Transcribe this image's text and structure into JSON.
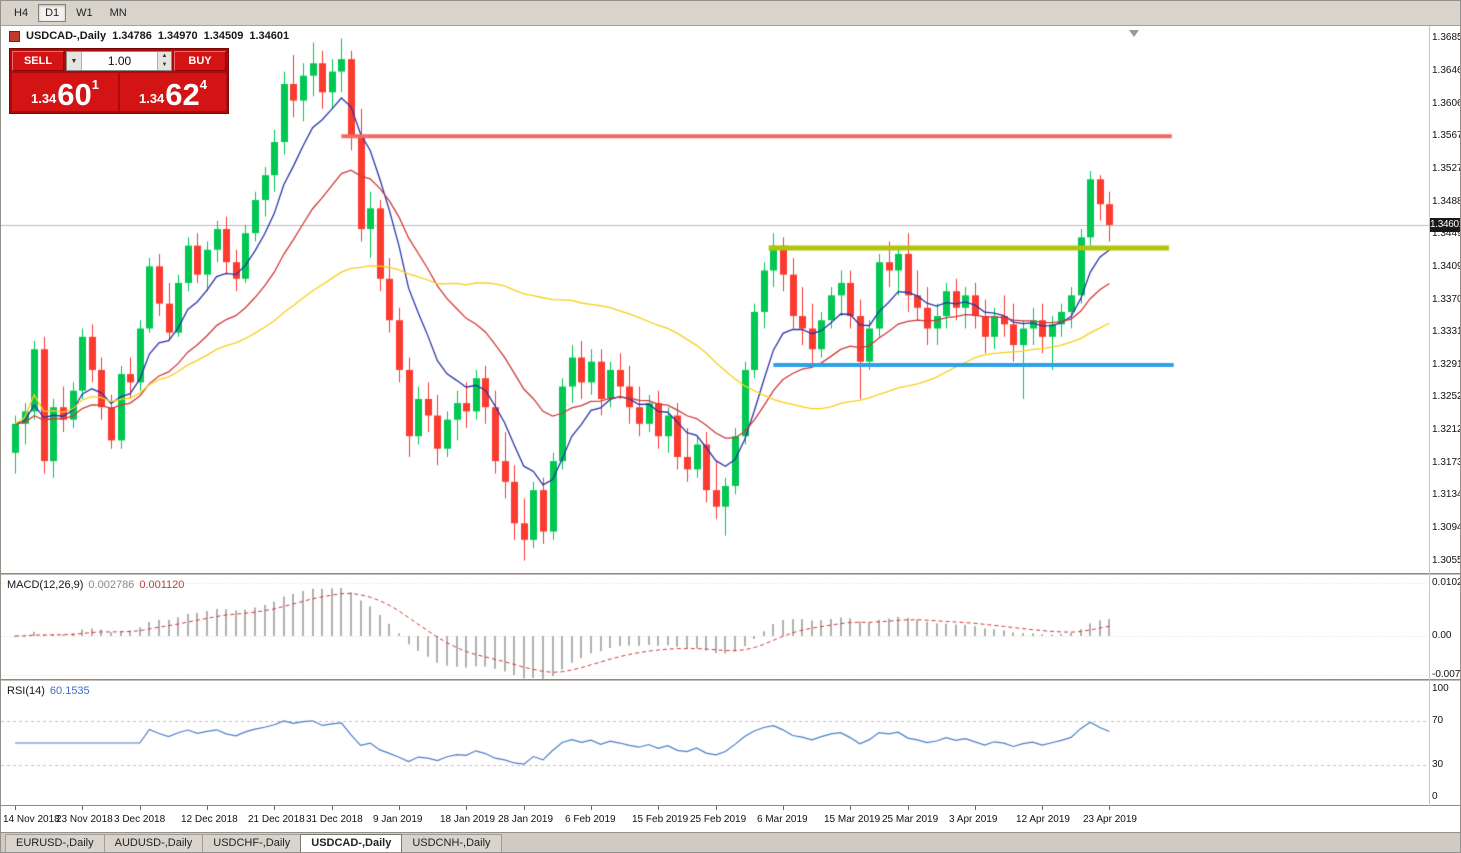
{
  "colors": {
    "bull": "#00c853",
    "bear": "#fb3b30",
    "ma_fast": "#2a35a8",
    "ma_mid": "#cf3a3a",
    "ma_slow": "#f7cf1b",
    "macd_hist": "#b0b0b0",
    "macd_signal": "#cf3a3a",
    "rsi_line": "#4b7dc8",
    "price_line": "#bdbdbd",
    "badge_bg": "#17171c"
  },
  "icons": {
    "dropdown": "▼",
    "spin_up": "▲",
    "spin_down": "▼"
  },
  "toolbar": {
    "periods": [
      {
        "label": "H4",
        "active": false
      },
      {
        "label": "D1",
        "active": true
      },
      {
        "label": "W1",
        "active": false
      },
      {
        "label": "MN",
        "active": false
      }
    ]
  },
  "chart_header": {
    "symbol": "USDCAD-,Daily",
    "open": "1.34786",
    "high": "1.34970",
    "low": "1.34509",
    "close": "1.34601"
  },
  "trade_panel": {
    "sell_label": "SELL",
    "buy_label": "BUY",
    "volume": "1.00",
    "sell_price": {
      "small": "1.34",
      "big": "60",
      "sup": "1"
    },
    "buy_price": {
      "small": "1.34",
      "big": "62",
      "sup": "4"
    }
  },
  "price_axis_labels": [
    "1.36850",
    "1.36460",
    "1.36060",
    "1.35670",
    "1.35270",
    "1.34880",
    "1.34490",
    "1.34090",
    "1.33700",
    "1.33310",
    "1.32910",
    "1.32520",
    "1.32120",
    "1.31730",
    "1.31340",
    "1.30940",
    "1.30550"
  ],
  "current_price": "1.34601",
  "macd_panel": {
    "name": "MACD(12,26,9)",
    "value1": "0.002786",
    "value2": "0.001120",
    "axis_labels": [
      {
        "text": "0.010225",
        "value": 0.010225
      },
      {
        "text": "0.00",
        "value": 0
      },
      {
        "text": "-0.00747",
        "value": -0.00747
      }
    ]
  },
  "rsi_panel": {
    "name": "RSI(14)",
    "value": "60.1535",
    "axis_labels": [
      {
        "text": "100",
        "value": 100
      },
      {
        "text": "70",
        "value": 70
      },
      {
        "text": "30",
        "value": 30
      },
      {
        "text": "0",
        "value": 0
      }
    ],
    "levels": [
      70,
      30
    ]
  },
  "tabs": [
    {
      "label": "EURUSD-,Daily",
      "active": false
    },
    {
      "label": "AUDUSD-,Daily",
      "active": false
    },
    {
      "label": "USDCHF-,Daily",
      "active": false
    },
    {
      "label": "USDCAD-,Daily",
      "active": true
    },
    {
      "label": "USDCNH-,Daily",
      "active": false
    }
  ],
  "chart_data": {
    "type": "candlestick",
    "symbol": "USDCAD",
    "timeframe": "Daily",
    "title": "USDCAD-,Daily",
    "y_range": [
      1.304,
      1.37
    ],
    "x_labels": [
      "14 Nov 2018",
      "23 Nov 2018",
      "3 Dec 2018",
      "12 Dec 2018",
      "21 Dec 2018",
      "31 Dec 2018",
      "9 Jan 2019",
      "18 Jan 2019",
      "28 Jan 2019",
      "6 Feb 2019",
      "15 Feb 2019",
      "25 Feb 2019",
      "6 Mar 2019",
      "15 Mar 2019",
      "25 Mar 2019",
      "3 Apr 2019",
      "12 Apr 2019",
      "23 Apr 2019"
    ],
    "x_label_indices": [
      0,
      7,
      13,
      20,
      27,
      33,
      40,
      47,
      53,
      60,
      67,
      73,
      80,
      87,
      93,
      100,
      107,
      114
    ],
    "ohlc": [
      [
        1.3185,
        1.323,
        1.316,
        1.322
      ],
      [
        1.322,
        1.3245,
        1.3195,
        1.3235
      ],
      [
        1.3235,
        1.332,
        1.3225,
        1.331
      ],
      [
        1.331,
        1.3325,
        1.316,
        1.3175
      ],
      [
        1.3175,
        1.325,
        1.3155,
        1.324
      ],
      [
        1.324,
        1.3265,
        1.321,
        1.3225
      ],
      [
        1.3225,
        1.327,
        1.3215,
        1.326
      ],
      [
        1.326,
        1.3335,
        1.325,
        1.3325
      ],
      [
        1.3325,
        1.334,
        1.327,
        1.3285
      ],
      [
        1.3285,
        1.33,
        1.3225,
        1.324
      ],
      [
        1.324,
        1.3255,
        1.319,
        1.32
      ],
      [
        1.32,
        1.329,
        1.319,
        1.328
      ],
      [
        1.328,
        1.33,
        1.325,
        1.327
      ],
      [
        1.327,
        1.3345,
        1.326,
        1.3335
      ],
      [
        1.3335,
        1.342,
        1.333,
        1.341
      ],
      [
        1.341,
        1.3425,
        1.335,
        1.3365
      ],
      [
        1.3365,
        1.339,
        1.332,
        1.333
      ],
      [
        1.333,
        1.34,
        1.3325,
        1.339
      ],
      [
        1.339,
        1.3445,
        1.338,
        1.3435
      ],
      [
        1.3435,
        1.345,
        1.339,
        1.34
      ],
      [
        1.34,
        1.344,
        1.338,
        1.343
      ],
      [
        1.343,
        1.3465,
        1.3415,
        1.3455
      ],
      [
        1.3455,
        1.347,
        1.34,
        1.3415
      ],
      [
        1.3415,
        1.343,
        1.338,
        1.3395
      ],
      [
        1.3395,
        1.346,
        1.339,
        1.345
      ],
      [
        1.345,
        1.35,
        1.344,
        1.349
      ],
      [
        1.349,
        1.353,
        1.347,
        1.352
      ],
      [
        1.352,
        1.3575,
        1.35,
        1.356
      ],
      [
        1.356,
        1.3645,
        1.3545,
        1.363
      ],
      [
        1.363,
        1.3665,
        1.359,
        1.361
      ],
      [
        1.361,
        1.3655,
        1.3585,
        1.364
      ],
      [
        1.364,
        1.368,
        1.3615,
        1.3655
      ],
      [
        1.3655,
        1.367,
        1.36,
        1.362
      ],
      [
        1.362,
        1.366,
        1.36,
        1.3645
      ],
      [
        1.3645,
        1.3685,
        1.362,
        1.366
      ],
      [
        1.366,
        1.367,
        1.355,
        1.3565
      ],
      [
        1.3565,
        1.36,
        1.344,
        1.3455
      ],
      [
        1.3455,
        1.35,
        1.342,
        1.348
      ],
      [
        1.348,
        1.349,
        1.338,
        1.3395
      ],
      [
        1.3395,
        1.342,
        1.333,
        1.3345
      ],
      [
        1.3345,
        1.336,
        1.327,
        1.3285
      ],
      [
        1.3285,
        1.33,
        1.318,
        1.3205
      ],
      [
        1.3205,
        1.3265,
        1.3195,
        1.325
      ],
      [
        1.325,
        1.327,
        1.321,
        1.323
      ],
      [
        1.323,
        1.3255,
        1.317,
        1.319
      ],
      [
        1.319,
        1.3235,
        1.318,
        1.3225
      ],
      [
        1.3225,
        1.326,
        1.32,
        1.3245
      ],
      [
        1.3245,
        1.327,
        1.3215,
        1.3235
      ],
      [
        1.3235,
        1.3285,
        1.3225,
        1.3275
      ],
      [
        1.3275,
        1.329,
        1.322,
        1.324
      ],
      [
        1.324,
        1.326,
        1.316,
        1.3175
      ],
      [
        1.3175,
        1.321,
        1.313,
        1.315
      ],
      [
        1.315,
        1.317,
        1.308,
        1.31
      ],
      [
        1.31,
        1.313,
        1.3055,
        1.308
      ],
      [
        1.308,
        1.315,
        1.307,
        1.314
      ],
      [
        1.314,
        1.3155,
        1.3075,
        1.309
      ],
      [
        1.309,
        1.3185,
        1.308,
        1.3175
      ],
      [
        1.3175,
        1.3275,
        1.3165,
        1.3265
      ],
      [
        1.3265,
        1.3315,
        1.3245,
        1.33
      ],
      [
        1.33,
        1.332,
        1.325,
        1.327
      ],
      [
        1.327,
        1.331,
        1.3255,
        1.3295
      ],
      [
        1.3295,
        1.331,
        1.323,
        1.325
      ],
      [
        1.325,
        1.3295,
        1.324,
        1.3285
      ],
      [
        1.3285,
        1.3305,
        1.325,
        1.3265
      ],
      [
        1.3265,
        1.329,
        1.322,
        1.324
      ],
      [
        1.324,
        1.3265,
        1.3205,
        1.322
      ],
      [
        1.322,
        1.3255,
        1.321,
        1.3245
      ],
      [
        1.3245,
        1.326,
        1.319,
        1.3205
      ],
      [
        1.3205,
        1.324,
        1.3185,
        1.323
      ],
      [
        1.323,
        1.3245,
        1.3165,
        1.318
      ],
      [
        1.318,
        1.3215,
        1.315,
        1.3165
      ],
      [
        1.3165,
        1.3205,
        1.3155,
        1.3195
      ],
      [
        1.3195,
        1.321,
        1.3125,
        1.314
      ],
      [
        1.314,
        1.3175,
        1.3105,
        1.312
      ],
      [
        1.312,
        1.3155,
        1.3085,
        1.3145
      ],
      [
        1.3145,
        1.3215,
        1.3135,
        1.3205
      ],
      [
        1.3205,
        1.3295,
        1.3195,
        1.3285
      ],
      [
        1.3285,
        1.3365,
        1.3275,
        1.3355
      ],
      [
        1.3355,
        1.3415,
        1.3335,
        1.3405
      ],
      [
        1.3405,
        1.345,
        1.3385,
        1.3435
      ],
      [
        1.3435,
        1.3445,
        1.338,
        1.34
      ],
      [
        1.34,
        1.342,
        1.3335,
        1.335
      ],
      [
        1.335,
        1.3385,
        1.3315,
        1.3335
      ],
      [
        1.3335,
        1.3365,
        1.329,
        1.331
      ],
      [
        1.331,
        1.3355,
        1.33,
        1.3345
      ],
      [
        1.3345,
        1.3385,
        1.3335,
        1.3375
      ],
      [
        1.3375,
        1.3405,
        1.335,
        1.339
      ],
      [
        1.339,
        1.3405,
        1.3335,
        1.335
      ],
      [
        1.335,
        1.337,
        1.325,
        1.3295
      ],
      [
        1.3295,
        1.3345,
        1.3285,
        1.3335
      ],
      [
        1.3335,
        1.3425,
        1.3325,
        1.3415
      ],
      [
        1.3415,
        1.344,
        1.3385,
        1.3405
      ],
      [
        1.3405,
        1.3435,
        1.3375,
        1.3425
      ],
      [
        1.3425,
        1.345,
        1.3355,
        1.3375
      ],
      [
        1.3375,
        1.3405,
        1.3345,
        1.336
      ],
      [
        1.336,
        1.3385,
        1.3315,
        1.3335
      ],
      [
        1.3335,
        1.3365,
        1.3315,
        1.335
      ],
      [
        1.335,
        1.339,
        1.3335,
        1.338
      ],
      [
        1.338,
        1.3395,
        1.3345,
        1.336
      ],
      [
        1.336,
        1.3385,
        1.3335,
        1.3375
      ],
      [
        1.3375,
        1.339,
        1.3335,
        1.335
      ],
      [
        1.335,
        1.337,
        1.3305,
        1.3325
      ],
      [
        1.3325,
        1.336,
        1.331,
        1.335
      ],
      [
        1.335,
        1.3375,
        1.3325,
        1.334
      ],
      [
        1.334,
        1.3365,
        1.3295,
        1.3315
      ],
      [
        1.3315,
        1.3345,
        1.325,
        1.3335
      ],
      [
        1.3335,
        1.336,
        1.3315,
        1.3345
      ],
      [
        1.3345,
        1.3365,
        1.3305,
        1.3325
      ],
      [
        1.3325,
        1.335,
        1.3285,
        1.334
      ],
      [
        1.334,
        1.3365,
        1.3325,
        1.3355
      ],
      [
        1.3355,
        1.3385,
        1.3335,
        1.3375
      ],
      [
        1.3375,
        1.3455,
        1.3365,
        1.3445
      ],
      [
        1.3445,
        1.3525,
        1.3435,
        1.3515
      ],
      [
        1.3515,
        1.352,
        1.3465,
        1.3485
      ],
      [
        1.3485,
        1.35,
        1.344,
        1.346
      ]
    ],
    "overlays": [
      {
        "name": "ma-fast",
        "type": "ema",
        "period": 8,
        "color_key": "ma_fast"
      },
      {
        "name": "ma-mid",
        "type": "ema",
        "period": 20,
        "color_key": "ma_mid"
      },
      {
        "name": "ma-slow",
        "type": "sma",
        "period": 45,
        "color_key": "ma_slow"
      }
    ],
    "hlines": [
      {
        "price": 1.3567,
        "color": "#f26a60",
        "width": 4,
        "from_bar": 34,
        "to_bar": 120.5
      },
      {
        "price": 1.3432,
        "color": "#b0c40c",
        "width": 5,
        "from_bar": 78.5,
        "to_bar": 120.2
      },
      {
        "price": 1.3291,
        "color": "#2da0e8",
        "width": 4,
        "from_bar": 79,
        "to_bar": 120.7
      }
    ],
    "macd": {
      "fast": 12,
      "slow": 26,
      "signal": 9
    },
    "rsi": {
      "period": 14
    }
  }
}
